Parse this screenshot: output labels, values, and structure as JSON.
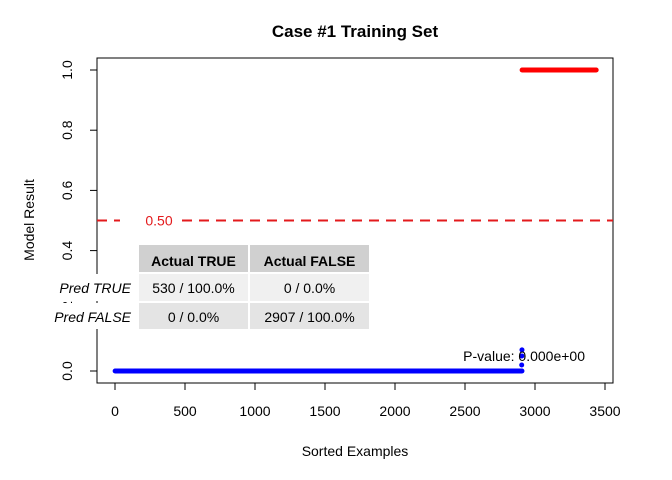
{
  "chart_data": {
    "type": "scatter",
    "title": "Case #1 Training Set",
    "xlabel": "Sorted Examples",
    "ylabel": "Model Result",
    "xlim": [
      0,
      3500
    ],
    "ylim": [
      0.0,
      1.0
    ],
    "x_ticks": [
      "0",
      "500",
      "1000",
      "1500",
      "2000",
      "2500",
      "3000",
      "3500"
    ],
    "y_ticks": [
      "0.0",
      "0.2",
      "0.4",
      "0.6",
      "0.8",
      "1.0"
    ],
    "grid": false,
    "series": [
      {
        "color": "#0000ff",
        "x_start": 1,
        "x_end": 2907,
        "y": 0.0,
        "tail": [
          [
            2905,
            0.02
          ],
          [
            2906,
            0.05
          ],
          [
            2907,
            0.07
          ]
        ]
      },
      {
        "color": "#ff0000",
        "x_start": 2908,
        "x_end": 3437,
        "y": 1.0
      }
    ],
    "threshold": {
      "value": 0.5,
      "label": "0.50",
      "color": "#e31a1c",
      "style": "dashed"
    },
    "annotation": "P-value: 0.000e+00",
    "confusion_matrix": {
      "col_headers": [
        "Actual TRUE",
        "Actual FALSE"
      ],
      "rows": [
        {
          "label": "Pred TRUE",
          "cells": [
            "530 / 100.0%",
            "0 / 0.0%"
          ]
        },
        {
          "label": "Pred FALSE",
          "cells": [
            "0 / 0.0%",
            "2907 / 100.0%"
          ]
        }
      ]
    }
  }
}
